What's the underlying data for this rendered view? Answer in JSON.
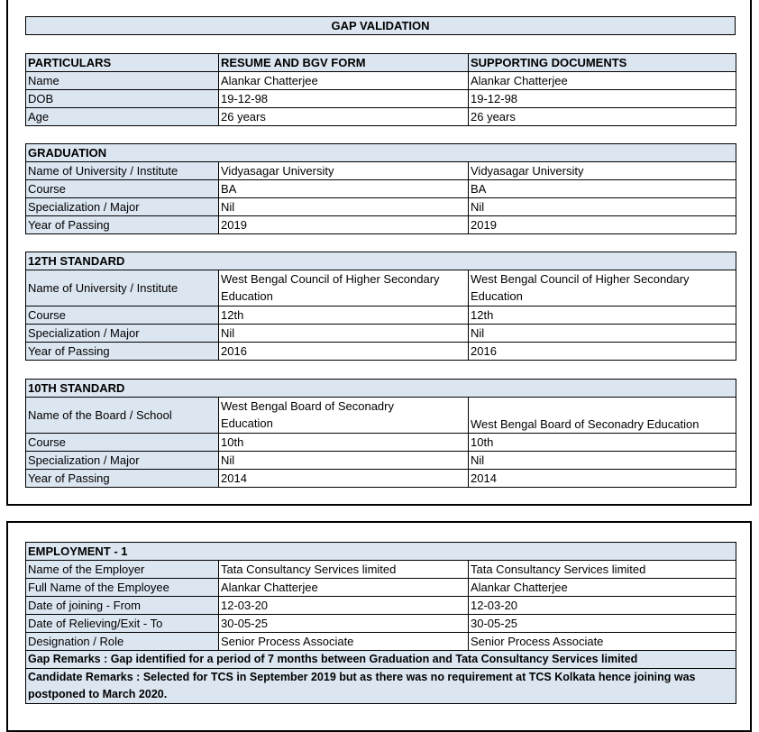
{
  "title": "GAP VALIDATION",
  "particulars": {
    "headers": [
      "PARTICULARS",
      "RESUME AND BGV FORM",
      "SUPPORTING DOCUMENTS"
    ],
    "rows": [
      [
        "Name",
        "Alankar Chatterjee",
        "Alankar Chatterjee"
      ],
      [
        "DOB",
        "19-12-98",
        "19-12-98"
      ],
      [
        "Age",
        "26 years",
        "26 years"
      ]
    ]
  },
  "graduation": {
    "heading": "GRADUATION",
    "rows": [
      [
        "Name of University / Institute",
        "Vidyasagar University",
        "Vidyasagar University"
      ],
      [
        "Course",
        "BA",
        "BA"
      ],
      [
        "Specialization / Major",
        "Nil",
        "Nil"
      ],
      [
        "Year of Passing",
        "2019",
        "2019"
      ]
    ]
  },
  "twelfth": {
    "heading": "12TH STANDARD",
    "rows": [
      [
        "Name of University / Institute",
        "West Bengal Council of Higher Secondary Education",
        "West Bengal Council of Higher Secondary Education"
      ],
      [
        "Course",
        "12th",
        "12th"
      ],
      [
        "Specialization / Major",
        "Nil",
        "Nil"
      ],
      [
        "Year of Passing",
        "2016",
        "2016"
      ]
    ]
  },
  "tenth": {
    "heading": "10TH STANDARD",
    "rows": [
      [
        "Name of the Board / School",
        "West Bengal Board of Seconadry Education",
        "West Bengal Board of Seconadry Education"
      ],
      [
        "Course",
        "10th",
        "10th"
      ],
      [
        "Specialization / Major",
        "Nil",
        "Nil"
      ],
      [
        "Year of Passing",
        "2014",
        "2014"
      ]
    ]
  },
  "employment": {
    "heading": "EMPLOYMENT - 1",
    "rows": [
      [
        "Name of the Employer",
        "Tata Consultancy Services limited",
        "Tata Consultancy Services limited"
      ],
      [
        "Full Name of the Employee",
        "Alankar Chatterjee",
        "Alankar Chatterjee"
      ],
      [
        "Date of joining - From",
        "12-03-20",
        "12-03-20"
      ],
      [
        "Date of Relieving/Exit - To",
        "30-05-25",
        "30-05-25"
      ],
      [
        "Designation / Role",
        "Senior Process Associate",
        "Senior Process Associate"
      ]
    ],
    "gap_remarks": "Gap Remarks : Gap identified for a period of 7 months between Graduation and Tata Consultancy Services limited",
    "candidate_remarks": "Candidate Remarks : Selected for TCS in September 2019 but as there was no requirement at TCS Kolkata hence joining was postponed to March 2020."
  }
}
